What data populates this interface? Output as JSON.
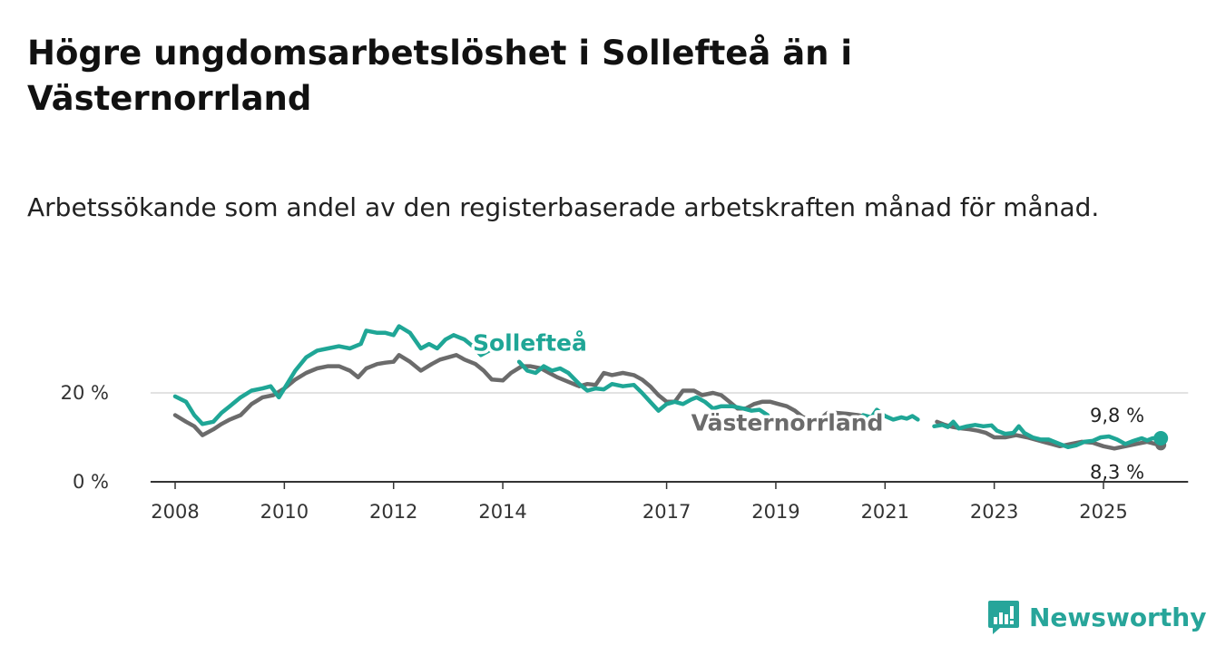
{
  "header": {
    "title": "Högre ungdomsarbetslöshet i Sollefteå än i Västernorrland",
    "subtitle": "Arbetssökande som andel av den registerbaserade arbetskraften månad för månad."
  },
  "brand": {
    "name": "Newsworthy",
    "icon": "newsworthy-logo-icon",
    "color": "#27a59a"
  },
  "chart_data": {
    "type": "line",
    "title": "Högre ungdomsarbetslöshet i Sollefteå än i Västernorrland",
    "subtitle": "Arbetssökande som andel av den registerbaserade arbetskraften månad för månad.",
    "xlabel": "",
    "ylabel": "",
    "xlim": [
      2007.55,
      2026.55
    ],
    "ylim": [
      0,
      35
    ],
    "grid": true,
    "legend": "inline labels",
    "x_ticks": [
      {
        "value": 2008,
        "label": "2008"
      },
      {
        "value": 2010,
        "label": "2010"
      },
      {
        "value": 2012,
        "label": "2012"
      },
      {
        "value": 2014,
        "label": "2014"
      },
      {
        "value": 2017,
        "label": "2017"
      },
      {
        "value": 2019,
        "label": "2019"
      },
      {
        "value": 2021,
        "label": "2021"
      },
      {
        "value": 2023,
        "label": "2023"
      },
      {
        "value": 2025,
        "label": "2025"
      }
    ],
    "y_ticks": [
      {
        "value": 0,
        "label": "0 %"
      },
      {
        "value": 20,
        "label": "20 %"
      }
    ],
    "series": [
      {
        "name": "Sollefteå",
        "color": "#1fa696",
        "end_label": "9,8 %",
        "points": [
          [
            2008.0,
            19.2
          ],
          [
            2008.2,
            18.0
          ],
          [
            2008.35,
            15.0
          ],
          [
            2008.5,
            13.0
          ],
          [
            2008.7,
            13.5
          ],
          [
            2008.85,
            15.5
          ],
          [
            2009.0,
            17.0
          ],
          [
            2009.2,
            19.0
          ],
          [
            2009.4,
            20.5
          ],
          [
            2009.6,
            21.0
          ],
          [
            2009.75,
            21.5
          ],
          [
            2009.9,
            19.0
          ],
          [
            2010.05,
            22.0
          ],
          [
            2010.2,
            25.0
          ],
          [
            2010.4,
            28.0
          ],
          [
            2010.6,
            29.5
          ],
          [
            2010.8,
            30.0
          ],
          [
            2011.0,
            30.5
          ],
          [
            2011.2,
            30.0
          ],
          [
            2011.4,
            31.0
          ],
          [
            2011.5,
            34.0
          ],
          [
            2011.7,
            33.5
          ],
          [
            2011.85,
            33.5
          ],
          [
            2012.0,
            33.0
          ],
          [
            2012.1,
            35.0
          ],
          [
            2012.3,
            33.5
          ],
          [
            2012.5,
            30.0
          ],
          [
            2012.65,
            31.0
          ],
          [
            2012.8,
            30.0
          ],
          [
            2012.95,
            32.0
          ],
          [
            2013.1,
            33.0
          ],
          [
            2013.3,
            32.0
          ],
          [
            2013.45,
            30.5
          ],
          [
            2013.6,
            28.5
          ],
          [
            2013.75,
            29.5
          ]
        ],
        "points_2": [
          [
            2014.3,
            27.0
          ],
          [
            2014.45,
            25.0
          ],
          [
            2014.6,
            24.5
          ],
          [
            2014.75,
            26.0
          ],
          [
            2014.9,
            25.0
          ],
          [
            2015.05,
            25.5
          ],
          [
            2015.2,
            24.5
          ],
          [
            2015.4,
            22.0
          ],
          [
            2015.55,
            20.5
          ],
          [
            2015.7,
            21.0
          ],
          [
            2015.85,
            20.8
          ],
          [
            2016.0,
            22.0
          ],
          [
            2016.2,
            21.5
          ],
          [
            2016.4,
            21.8
          ],
          [
            2016.55,
            20.0
          ],
          [
            2016.7,
            18.0
          ],
          [
            2016.85,
            16.0
          ],
          [
            2017.0,
            17.5
          ],
          [
            2017.15,
            18.0
          ],
          [
            2017.3,
            17.5
          ],
          [
            2017.45,
            18.5
          ],
          [
            2017.55,
            19.0
          ],
          [
            2017.7,
            18.0
          ],
          [
            2017.85,
            16.5
          ],
          [
            2018.0,
            17.0
          ],
          [
            2018.2,
            17.0
          ],
          [
            2018.4,
            16.5
          ],
          [
            2018.55,
            16.0
          ],
          [
            2018.7,
            16.2
          ],
          [
            2018.85,
            15.0
          ]
        ],
        "points_3": [
          [
            2020.6,
            15.0
          ],
          [
            2020.75,
            14.5
          ],
          [
            2020.85,
            16.2
          ],
          [
            2021.0,
            14.8
          ],
          [
            2021.15,
            14.0
          ],
          [
            2021.3,
            14.5
          ],
          [
            2021.4,
            14.2
          ],
          [
            2021.5,
            14.8
          ],
          [
            2021.6,
            14.0
          ]
        ],
        "points_4": [
          [
            2021.9,
            12.5
          ],
          [
            2022.05,
            12.8
          ],
          [
            2022.15,
            12.3
          ],
          [
            2022.25,
            13.5
          ],
          [
            2022.35,
            12.0
          ],
          [
            2022.5,
            12.5
          ],
          [
            2022.65,
            12.8
          ],
          [
            2022.8,
            12.5
          ],
          [
            2022.95,
            12.7
          ],
          [
            2023.05,
            11.5
          ],
          [
            2023.2,
            10.8
          ],
          [
            2023.35,
            11.0
          ],
          [
            2023.45,
            12.5
          ],
          [
            2023.55,
            11.0
          ],
          [
            2023.7,
            10.0
          ],
          [
            2023.85,
            9.5
          ],
          [
            2024.0,
            9.5
          ],
          [
            2024.2,
            8.5
          ],
          [
            2024.35,
            7.8
          ],
          [
            2024.5,
            8.2
          ],
          [
            2024.65,
            9.0
          ],
          [
            2024.8,
            9.2
          ],
          [
            2024.95,
            10.0
          ],
          [
            2025.1,
            10.2
          ],
          [
            2025.25,
            9.5
          ],
          [
            2025.4,
            8.5
          ],
          [
            2025.55,
            9.2
          ],
          [
            2025.7,
            9.8
          ],
          [
            2025.8,
            9.3
          ],
          [
            2025.9,
            9.8
          ],
          [
            2026.05,
            9.8
          ]
        ]
      },
      {
        "name": "Västernorrland",
        "color": "#6b6b6b",
        "end_label": "8,3 %",
        "points": [
          [
            2008.0,
            15.0
          ],
          [
            2008.2,
            13.5
          ],
          [
            2008.35,
            12.5
          ],
          [
            2008.5,
            10.5
          ],
          [
            2008.7,
            11.8
          ],
          [
            2008.85,
            13.0
          ],
          [
            2009.0,
            14.0
          ],
          [
            2009.2,
            15.0
          ],
          [
            2009.4,
            17.5
          ],
          [
            2009.6,
            19.0
          ],
          [
            2009.8,
            19.5
          ],
          [
            2010.0,
            21.0
          ],
          [
            2010.2,
            23.0
          ],
          [
            2010.4,
            24.5
          ],
          [
            2010.6,
            25.5
          ],
          [
            2010.8,
            26.0
          ],
          [
            2011.0,
            26.0
          ],
          [
            2011.2,
            25.0
          ],
          [
            2011.35,
            23.5
          ],
          [
            2011.5,
            25.5
          ],
          [
            2011.7,
            26.5
          ],
          [
            2011.85,
            26.8
          ],
          [
            2012.0,
            27.0
          ],
          [
            2012.1,
            28.5
          ],
          [
            2012.3,
            27.0
          ],
          [
            2012.5,
            25.0
          ],
          [
            2012.7,
            26.5
          ],
          [
            2012.85,
            27.5
          ],
          [
            2013.0,
            28.0
          ],
          [
            2013.15,
            28.5
          ],
          [
            2013.3,
            27.5
          ],
          [
            2013.5,
            26.5
          ],
          [
            2013.65,
            25.0
          ],
          [
            2013.8,
            23.0
          ],
          [
            2014.0,
            22.8
          ],
          [
            2014.15,
            24.5
          ],
          [
            2014.35,
            26.0
          ],
          [
            2014.5,
            26.0
          ],
          [
            2014.7,
            25.5
          ],
          [
            2014.85,
            24.5
          ],
          [
            2015.0,
            23.5
          ],
          [
            2015.2,
            22.5
          ],
          [
            2015.4,
            21.5
          ],
          [
            2015.55,
            22.0
          ],
          [
            2015.7,
            21.8
          ],
          [
            2015.85,
            24.5
          ],
          [
            2016.0,
            24.0
          ],
          [
            2016.2,
            24.5
          ],
          [
            2016.4,
            24.0
          ],
          [
            2016.55,
            23.0
          ],
          [
            2016.7,
            21.5
          ],
          [
            2016.85,
            19.5
          ],
          [
            2017.0,
            18.0
          ],
          [
            2017.15,
            18.0
          ],
          [
            2017.3,
            20.5
          ],
          [
            2017.5,
            20.5
          ],
          [
            2017.65,
            19.5
          ],
          [
            2017.85,
            20.0
          ],
          [
            2018.0,
            19.5
          ],
          [
            2018.15,
            18.0
          ],
          [
            2018.3,
            16.5
          ],
          [
            2018.45,
            16.5
          ],
          [
            2018.6,
            17.5
          ],
          [
            2018.75,
            18.0
          ],
          [
            2018.9,
            18.0
          ],
          [
            2019.05,
            17.5
          ],
          [
            2019.2,
            17.0
          ],
          [
            2019.35,
            16.0
          ],
          [
            2019.5,
            14.5
          ],
          [
            2019.65,
            14.2
          ],
          [
            2019.8,
            14.0
          ],
          [
            2019.95,
            15.5
          ],
          [
            2020.1,
            15.5
          ],
          [
            2020.3,
            15.3
          ],
          [
            2020.5,
            15.0
          ],
          [
            2020.7,
            14.5
          ],
          [
            2020.85,
            13.0
          ]
        ],
        "points_2": [
          [
            2021.95,
            13.5
          ],
          [
            2022.1,
            12.8
          ],
          [
            2022.25,
            12.3
          ],
          [
            2022.4,
            12.0
          ],
          [
            2022.55,
            11.8
          ],
          [
            2022.7,
            11.5
          ],
          [
            2022.85,
            11.0
          ],
          [
            2023.0,
            10.0
          ],
          [
            2023.2,
            10.0
          ],
          [
            2023.4,
            10.5
          ],
          [
            2023.6,
            10.0
          ],
          [
            2023.75,
            9.5
          ],
          [
            2023.9,
            9.0
          ],
          [
            2024.05,
            8.5
          ],
          [
            2024.2,
            8.0
          ],
          [
            2024.4,
            8.5
          ],
          [
            2024.6,
            9.0
          ],
          [
            2024.8,
            8.8
          ],
          [
            2025.0,
            8.0
          ],
          [
            2025.2,
            7.5
          ],
          [
            2025.4,
            8.0
          ],
          [
            2025.6,
            8.5
          ],
          [
            2025.8,
            9.0
          ],
          [
            2025.95,
            8.5
          ],
          [
            2026.05,
            8.3
          ]
        ]
      }
    ],
    "annotations": [
      {
        "text": "Sollefteå",
        "series": "Sollefteå",
        "x": 2013.45,
        "y": 29.5
      },
      {
        "text": "Västernorrland",
        "series": "Västernorrland",
        "x": 2017.45,
        "y": 11.5
      }
    ]
  }
}
